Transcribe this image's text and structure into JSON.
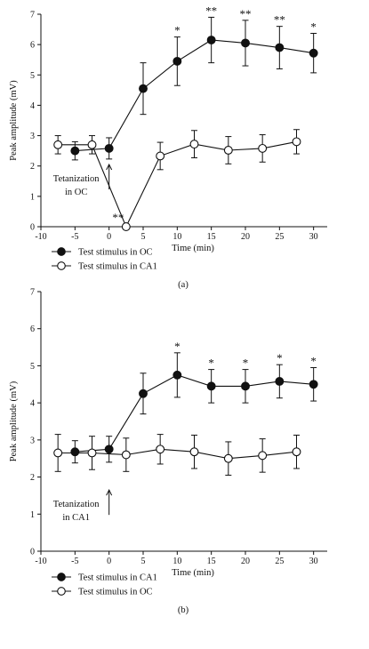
{
  "chart_data": [
    {
      "type": "line",
      "panel_label": "(a)",
      "xlabel": "Time (min)",
      "ylabel": "Peak amplitude (mV)",
      "xlim": [
        -10,
        32
      ],
      "ylim": [
        0,
        7
      ],
      "xticks": [
        -10,
        -5,
        0,
        5,
        10,
        15,
        20,
        25,
        30
      ],
      "yticks": [
        0,
        1,
        2,
        3,
        4,
        5,
        6,
        7
      ],
      "annotation": {
        "line1": "Tetanization",
        "line2": "in OC",
        "arrow_at_x": 0
      },
      "series": [
        {
          "name": "Test stimulus in OC",
          "marker": "filled-circle",
          "x": [
            -5,
            0,
            5,
            10,
            15,
            20,
            25,
            30
          ],
          "y": [
            2.5,
            2.58,
            4.55,
            5.45,
            6.15,
            6.05,
            5.9,
            5.72
          ],
          "err": [
            0.3,
            0.35,
            0.85,
            0.8,
            0.75,
            0.75,
            0.7,
            0.65
          ],
          "sig": [
            "",
            "",
            "",
            "*",
            "**",
            "**",
            "**",
            "*"
          ]
        },
        {
          "name": "Test stimulus in CA1",
          "marker": "open-circle",
          "x": [
            -7.5,
            -2.5,
            2.5,
            7.5,
            12.5,
            17.5,
            22.5,
            27.5
          ],
          "y": [
            2.7,
            2.7,
            0.0,
            2.33,
            2.72,
            2.52,
            2.58,
            2.8
          ],
          "err": [
            0.3,
            0.3,
            0.0,
            0.45,
            0.45,
            0.45,
            0.45,
            0.4
          ],
          "sig": [
            "",
            "",
            "**",
            "",
            "",
            "",
            "",
            ""
          ]
        }
      ]
    },
    {
      "type": "line",
      "panel_label": "(b)",
      "xlabel": "Time (min)",
      "ylabel": "Peak amplitude (mV)",
      "xlim": [
        -10,
        32
      ],
      "ylim": [
        0,
        7
      ],
      "xticks": [
        -10,
        -5,
        0,
        5,
        10,
        15,
        20,
        25,
        30
      ],
      "yticks": [
        0,
        1,
        2,
        3,
        4,
        5,
        6,
        7
      ],
      "annotation": {
        "line1": "Tetanization",
        "line2": "in CA1",
        "arrow_at_x": 0
      },
      "series": [
        {
          "name": "Test stimulus in CA1",
          "marker": "filled-circle",
          "x": [
            -5,
            0,
            5,
            10,
            15,
            20,
            25,
            30
          ],
          "y": [
            2.68,
            2.75,
            4.25,
            4.75,
            4.45,
            4.45,
            4.58,
            4.5
          ],
          "err": [
            0.3,
            0.35,
            0.55,
            0.6,
            0.45,
            0.45,
            0.45,
            0.45
          ],
          "sig": [
            "",
            "",
            "",
            "*",
            "*",
            "*",
            "*",
            "*"
          ]
        },
        {
          "name": "Test stimulus in OC",
          "marker": "open-circle",
          "x": [
            -7.5,
            -2.5,
            2.5,
            7.5,
            12.5,
            17.5,
            22.5,
            27.5
          ],
          "y": [
            2.65,
            2.65,
            2.6,
            2.75,
            2.68,
            2.5,
            2.58,
            2.68
          ],
          "err": [
            0.5,
            0.45,
            0.45,
            0.4,
            0.45,
            0.45,
            0.45,
            0.45
          ],
          "sig": [
            "",
            "",
            "",
            "",
            "",
            "",
            "",
            ""
          ]
        }
      ]
    }
  ]
}
